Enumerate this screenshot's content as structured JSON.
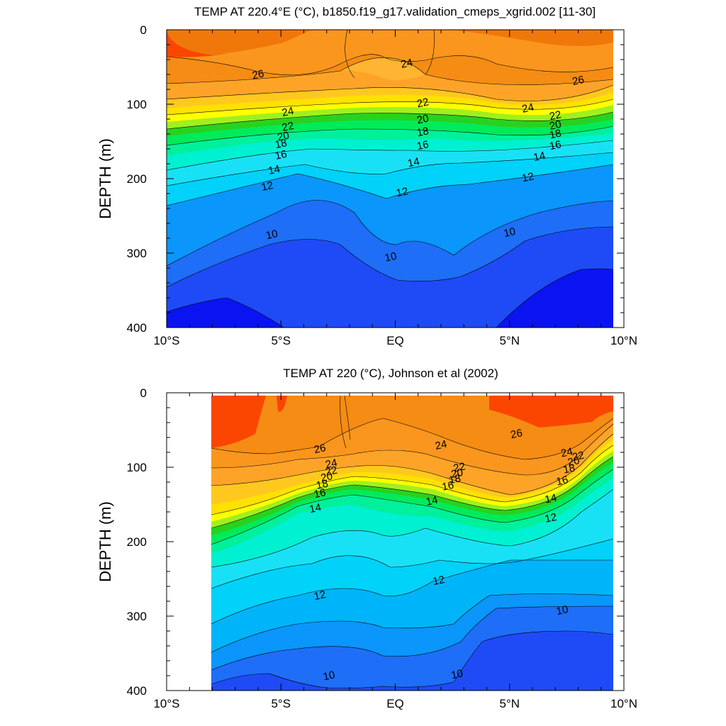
{
  "chart_data": [
    {
      "type": "contour",
      "title": "TEMP AT 220.4°E (°C), b1850.f19_g17.validation_cmeps_xgrid.002 [11-30]",
      "ylabel": "DEPTH (m)",
      "xlabel": "",
      "xlim": [
        -10,
        10
      ],
      "ylim": [
        400,
        0
      ],
      "x_ticks": [
        "10°S",
        "5°S",
        "EQ",
        "5°N",
        "10°N"
      ],
      "y_ticks": [
        "0",
        "100",
        "200",
        "300",
        "400"
      ],
      "data_extent": [
        -10,
        10
      ],
      "contour_interval": 1,
      "color_stops": [
        {
          "value": 8,
          "color": "#0a14f0"
        },
        {
          "value": 9,
          "color": "#1e4bf5"
        },
        {
          "value": 10,
          "color": "#1e6ef8"
        },
        {
          "value": 11,
          "color": "#0a96fa"
        },
        {
          "value": 12,
          "color": "#00b4fa"
        },
        {
          "value": 13,
          "color": "#00d2fa"
        },
        {
          "value": 14,
          "color": "#19e1f5"
        },
        {
          "value": 15,
          "color": "#00f0d2"
        },
        {
          "value": 16,
          "color": "#00f09b"
        },
        {
          "value": 17,
          "color": "#00eb5a"
        },
        {
          "value": 18,
          "color": "#28d21e"
        },
        {
          "value": 19,
          "color": "#a0f01e"
        },
        {
          "value": 20,
          "color": "#ffff00"
        },
        {
          "value": 21,
          "color": "#ffe100"
        },
        {
          "value": 22,
          "color": "#ffc81e"
        },
        {
          "value": 23,
          "color": "#ffb432"
        },
        {
          "value": 24,
          "color": "#fda428"
        },
        {
          "value": 25,
          "color": "#fa961e"
        },
        {
          "value": 26,
          "color": "#f58c14"
        },
        {
          "value": 27,
          "color": "#f0780a"
        },
        {
          "value": 28,
          "color": "#fa4600"
        }
      ],
      "contour_labels": [
        {
          "value": "26",
          "x": -6.0,
          "y": 60
        },
        {
          "value": "24",
          "x": -4.7,
          "y": 110
        },
        {
          "value": "22",
          "x": -4.7,
          "y": 130
        },
        {
          "value": "20",
          "x": -4.9,
          "y": 143
        },
        {
          "value": "18",
          "x": -5.0,
          "y": 153
        },
        {
          "value": "16",
          "x": -5.0,
          "y": 168
        },
        {
          "value": "14",
          "x": -5.3,
          "y": 188
        },
        {
          "value": "12",
          "x": -5.6,
          "y": 210
        },
        {
          "value": "10",
          "x": -5.4,
          "y": 275
        },
        {
          "value": "24",
          "x": 0.5,
          "y": 45
        },
        {
          "value": "22",
          "x": 1.2,
          "y": 98
        },
        {
          "value": "20",
          "x": 1.2,
          "y": 120
        },
        {
          "value": "18",
          "x": 1.2,
          "y": 137
        },
        {
          "value": "16",
          "x": 1.2,
          "y": 155
        },
        {
          "value": "14",
          "x": 0.8,
          "y": 178
        },
        {
          "value": "12",
          "x": 0.3,
          "y": 218
        },
        {
          "value": "10",
          "x": -0.2,
          "y": 305
        },
        {
          "value": "26",
          "x": 8.0,
          "y": 68
        },
        {
          "value": "24",
          "x": 5.8,
          "y": 105
        },
        {
          "value": "22",
          "x": 7.0,
          "y": 115
        },
        {
          "value": "20",
          "x": 7.0,
          "y": 128
        },
        {
          "value": "18",
          "x": 7.0,
          "y": 140
        },
        {
          "value": "16",
          "x": 7.0,
          "y": 155
        },
        {
          "value": "14",
          "x": 6.3,
          "y": 170
        },
        {
          "value": "12",
          "x": 5.8,
          "y": 198
        },
        {
          "value": "10",
          "x": 5.0,
          "y": 272
        }
      ]
    },
    {
      "type": "contour",
      "title": "TEMP AT 220 (°C), Johnson et al (2002)",
      "ylabel": "DEPTH (m)",
      "xlabel": "",
      "xlim": [
        -10,
        10
      ],
      "ylim": [
        400,
        0
      ],
      "x_ticks": [
        "10°S",
        "5°S",
        "EQ",
        "5°N",
        "10°N"
      ],
      "y_ticks": [
        "0",
        "100",
        "200",
        "300",
        "400"
      ],
      "data_extent": [
        -8,
        10
      ],
      "contour_interval": 1,
      "contour_labels": [
        {
          "value": "26",
          "x": -3.3,
          "y": 75
        },
        {
          "value": "24",
          "x": -2.8,
          "y": 95
        },
        {
          "value": "22",
          "x": -2.8,
          "y": 105
        },
        {
          "value": "20",
          "x": -3.0,
          "y": 113
        },
        {
          "value": "18",
          "x": -3.2,
          "y": 123
        },
        {
          "value": "16",
          "x": -3.3,
          "y": 135
        },
        {
          "value": "14",
          "x": -3.5,
          "y": 155
        },
        {
          "value": "12",
          "x": -3.3,
          "y": 272
        },
        {
          "value": "10",
          "x": -2.9,
          "y": 380
        },
        {
          "value": "24",
          "x": 2.0,
          "y": 70
        },
        {
          "value": "22",
          "x": 2.8,
          "y": 100
        },
        {
          "value": "20",
          "x": 2.7,
          "y": 108
        },
        {
          "value": "18",
          "x": 2.6,
          "y": 116
        },
        {
          "value": "16",
          "x": 2.3,
          "y": 125
        },
        {
          "value": "14",
          "x": 1.6,
          "y": 145
        },
        {
          "value": "12",
          "x": 1.9,
          "y": 252
        },
        {
          "value": "10",
          "x": 2.7,
          "y": 378
        },
        {
          "value": "26",
          "x": 5.3,
          "y": 55
        },
        {
          "value": "24",
          "x": 7.5,
          "y": 80
        },
        {
          "value": "22",
          "x": 8.0,
          "y": 85
        },
        {
          "value": "20",
          "x": 7.8,
          "y": 92
        },
        {
          "value": "18",
          "x": 7.6,
          "y": 102
        },
        {
          "value": "16",
          "x": 7.3,
          "y": 118
        },
        {
          "value": "14",
          "x": 6.8,
          "y": 142
        },
        {
          "value": "12",
          "x": 6.8,
          "y": 168
        },
        {
          "value": "10",
          "x": 7.3,
          "y": 292
        }
      ]
    }
  ]
}
